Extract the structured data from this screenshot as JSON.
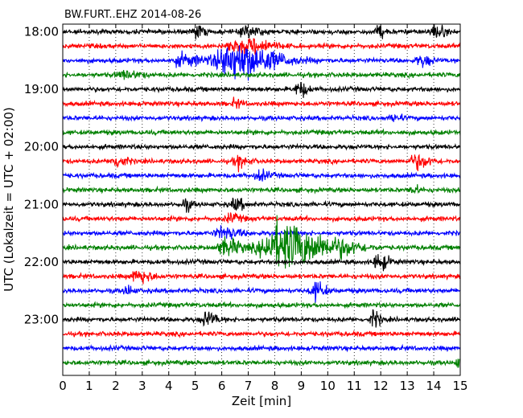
{
  "chart_data": {
    "type": "line",
    "title": "BW.FURT..EHZ 2014-08-26",
    "xlabel": "Zeit  [min]",
    "ylabel": "UTC (Lokalzeit = UTC + 02:00)",
    "xlim": [
      0,
      15
    ],
    "x_ticks": [
      "0",
      "1",
      "2",
      "3",
      "4",
      "5",
      "6",
      "7",
      "8",
      "9",
      "10",
      "11",
      "12",
      "13",
      "14",
      "15"
    ],
    "y_tick_labels": [
      "18:00",
      "19:00",
      "20:00",
      "21:00",
      "22:00",
      "23:00"
    ],
    "trace_interval_min": 15,
    "trace_start": "18:00",
    "trace_count": 24,
    "trace_colors": [
      "#000000",
      "#ff0000",
      "#0000ff",
      "#008000"
    ],
    "grid": {
      "x": true,
      "y": false,
      "style": "dotted"
    },
    "events": [
      {
        "trace": 0,
        "t": 5.0,
        "amp": 0.9,
        "dur": 0.25
      },
      {
        "trace": 0,
        "t": 6.9,
        "amp": 0.8,
        "dur": 0.4
      },
      {
        "trace": 0,
        "t": 11.9,
        "amp": 0.8,
        "dur": 0.2
      },
      {
        "trace": 0,
        "t": 14.0,
        "amp": 1.0,
        "dur": 0.3
      },
      {
        "trace": 1,
        "t": 6.6,
        "amp": 0.9,
        "dur": 0.8
      },
      {
        "trace": 1,
        "t": 7.3,
        "amp": 0.6,
        "dur": 0.4
      },
      {
        "trace": 2,
        "t": 6.4,
        "amp": 2.8,
        "dur": 1.2
      },
      {
        "trace": 2,
        "t": 4.5,
        "amp": 0.8,
        "dur": 0.6
      },
      {
        "trace": 2,
        "t": 13.5,
        "amp": 0.8,
        "dur": 0.3
      },
      {
        "trace": 3,
        "t": 2.3,
        "amp": 0.5,
        "dur": 0.5
      },
      {
        "trace": 4,
        "t": 8.9,
        "amp": 1.1,
        "dur": 0.25
      },
      {
        "trace": 5,
        "t": 6.5,
        "amp": 0.6,
        "dur": 0.2
      },
      {
        "trace": 6,
        "t": 12.5,
        "amp": 0.6,
        "dur": 0.2
      },
      {
        "trace": 9,
        "t": 2.0,
        "amp": 0.9,
        "dur": 0.3
      },
      {
        "trace": 9,
        "t": 6.6,
        "amp": 0.8,
        "dur": 0.3
      },
      {
        "trace": 9,
        "t": 13.3,
        "amp": 1.0,
        "dur": 0.4
      },
      {
        "trace": 10,
        "t": 7.4,
        "amp": 0.7,
        "dur": 0.3
      },
      {
        "trace": 11,
        "t": 13.2,
        "amp": 0.6,
        "dur": 0.2
      },
      {
        "trace": 12,
        "t": 4.6,
        "amp": 0.8,
        "dur": 0.2
      },
      {
        "trace": 12,
        "t": 6.5,
        "amp": 0.8,
        "dur": 0.3
      },
      {
        "trace": 13,
        "t": 6.3,
        "amp": 0.6,
        "dur": 0.3
      },
      {
        "trace": 14,
        "t": 6.0,
        "amp": 0.8,
        "dur": 0.5
      },
      {
        "trace": 15,
        "t": 8.2,
        "amp": 3.5,
        "dur": 1.3
      },
      {
        "trace": 15,
        "t": 6.1,
        "amp": 1.2,
        "dur": 0.5
      },
      {
        "trace": 15,
        "t": 10.5,
        "amp": 0.6,
        "dur": 0.6
      },
      {
        "trace": 16,
        "t": 11.9,
        "amp": 1.2,
        "dur": 0.3
      },
      {
        "trace": 17,
        "t": 2.8,
        "amp": 1.0,
        "dur": 0.4
      },
      {
        "trace": 18,
        "t": 9.5,
        "amp": 1.3,
        "dur": 0.3
      },
      {
        "trace": 18,
        "t": 2.4,
        "amp": 0.7,
        "dur": 0.2
      },
      {
        "trace": 20,
        "t": 5.4,
        "amp": 1.1,
        "dur": 0.3
      },
      {
        "trace": 20,
        "t": 11.7,
        "amp": 1.2,
        "dur": 0.2
      },
      {
        "trace": 23,
        "t": 14.9,
        "amp": 0.6,
        "dur": 0.2
      }
    ]
  }
}
